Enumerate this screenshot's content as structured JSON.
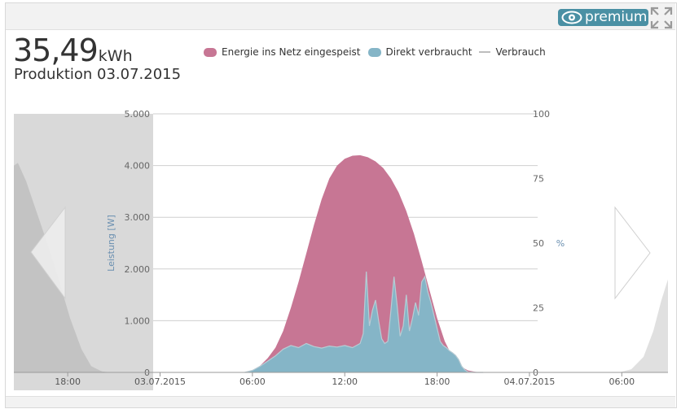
{
  "header": {
    "premium_label": "premium",
    "eye_icon": "eye-icon",
    "fullscreen_icon": "fullscreen-icon"
  },
  "summary": {
    "energy_value": "35,49",
    "energy_unit": "kWh",
    "production_label": "Produktion 03.07.2015"
  },
  "navigation": {
    "prev_icon": "chevron-left-icon",
    "next_icon": "chevron-right-icon"
  },
  "colors": {
    "feed_in": "#c77694",
    "direct": "#85b5c7",
    "consumption_line": "#bdbdbd",
    "outside_day": "#d9d9d9",
    "accent": "#4a90a4"
  },
  "chart_data": {
    "type": "area",
    "title": "",
    "legend": {
      "position": "top",
      "items": [
        {
          "label": "Energie ins Netz eingespeist",
          "color": "#c77694"
        },
        {
          "label": "Direkt verbraucht",
          "color": "#85b5c7"
        },
        {
          "label": "Verbrauch",
          "color": "#bdbdbd"
        }
      ]
    },
    "y_axis_left": {
      "label": "Leistung [W]",
      "range": [
        0,
        5000
      ],
      "ticks": [
        "0",
        "1.000",
        "2.000",
        "3.000",
        "4.000",
        "5.000"
      ],
      "tick_values": [
        0,
        1000,
        2000,
        3000,
        4000,
        5000
      ]
    },
    "y_axis_right": {
      "label": "%",
      "range": [
        0,
        100
      ],
      "ticks": [
        "0",
        "25",
        "50",
        "75",
        "100"
      ],
      "tick_values": [
        0,
        25,
        50,
        75,
        100
      ]
    },
    "x_axis": {
      "range_hours": [
        -9.5,
        33
      ],
      "ticks": [
        {
          "label": "18:00",
          "hour": -6
        },
        {
          "label": "03.07.2015",
          "hour": 0
        },
        {
          "label": "06:00",
          "hour": 6
        },
        {
          "label": "12:00",
          "hour": 12
        },
        {
          "label": "18:00",
          "hour": 18
        },
        {
          "label": "04.07.2015",
          "hour": 24
        },
        {
          "label": "06:00",
          "hour": 30
        }
      ]
    },
    "grid": true,
    "shaded_outside_day": true,
    "series": [
      {
        "name": "Energie ins Netz eingespeist",
        "hours": [
          5.5,
          6.0,
          6.5,
          7.0,
          7.5,
          8.0,
          8.5,
          9.0,
          9.5,
          10.0,
          10.5,
          11.0,
          11.5,
          12.0,
          12.5,
          13.0,
          13.5,
          14.0,
          14.5,
          15.0,
          15.5,
          16.0,
          16.5,
          17.0,
          17.5,
          18.0,
          18.5,
          19.0,
          19.5,
          20.0,
          20.5,
          21.0
        ],
        "values": [
          0,
          40,
          130,
          280,
          480,
          800,
          1250,
          1750,
          2300,
          2850,
          3350,
          3750,
          4000,
          4130,
          4190,
          4200,
          4160,
          4080,
          3950,
          3750,
          3480,
          3120,
          2680,
          2150,
          1600,
          1050,
          600,
          300,
          120,
          40,
          10,
          0
        ]
      },
      {
        "name": "Direkt verbraucht",
        "hours": [
          5.5,
          6.0,
          6.5,
          7.0,
          7.5,
          8.0,
          8.5,
          9.0,
          9.5,
          10.0,
          10.5,
          11.0,
          11.5,
          12.0,
          12.5,
          13.0,
          13.2,
          13.4,
          13.6,
          13.8,
          14.0,
          14.2,
          14.4,
          14.6,
          14.8,
          15.0,
          15.2,
          15.4,
          15.6,
          15.8,
          16.0,
          16.2,
          16.4,
          16.6,
          16.8,
          17.0,
          17.2,
          17.4,
          17.6,
          17.8,
          18.0,
          18.2,
          18.4,
          18.6,
          18.8,
          19.0,
          19.2,
          19.4,
          19.6,
          19.8,
          20.0,
          20.5,
          21.0
        ],
        "values": [
          0,
          40,
          120,
          220,
          320,
          450,
          520,
          480,
          560,
          500,
          470,
          510,
          490,
          520,
          480,
          560,
          750,
          1950,
          900,
          1200,
          1400,
          1000,
          650,
          560,
          600,
          1200,
          1850,
          1300,
          700,
          900,
          1500,
          800,
          1050,
          1350,
          1100,
          1750,
          1850,
          1550,
          1350,
          1100,
          850,
          600,
          520,
          480,
          420,
          380,
          330,
          250,
          120,
          50,
          10,
          0,
          0
        ]
      },
      {
        "name": "Verbrauch",
        "hours": [],
        "values": []
      }
    ]
  }
}
